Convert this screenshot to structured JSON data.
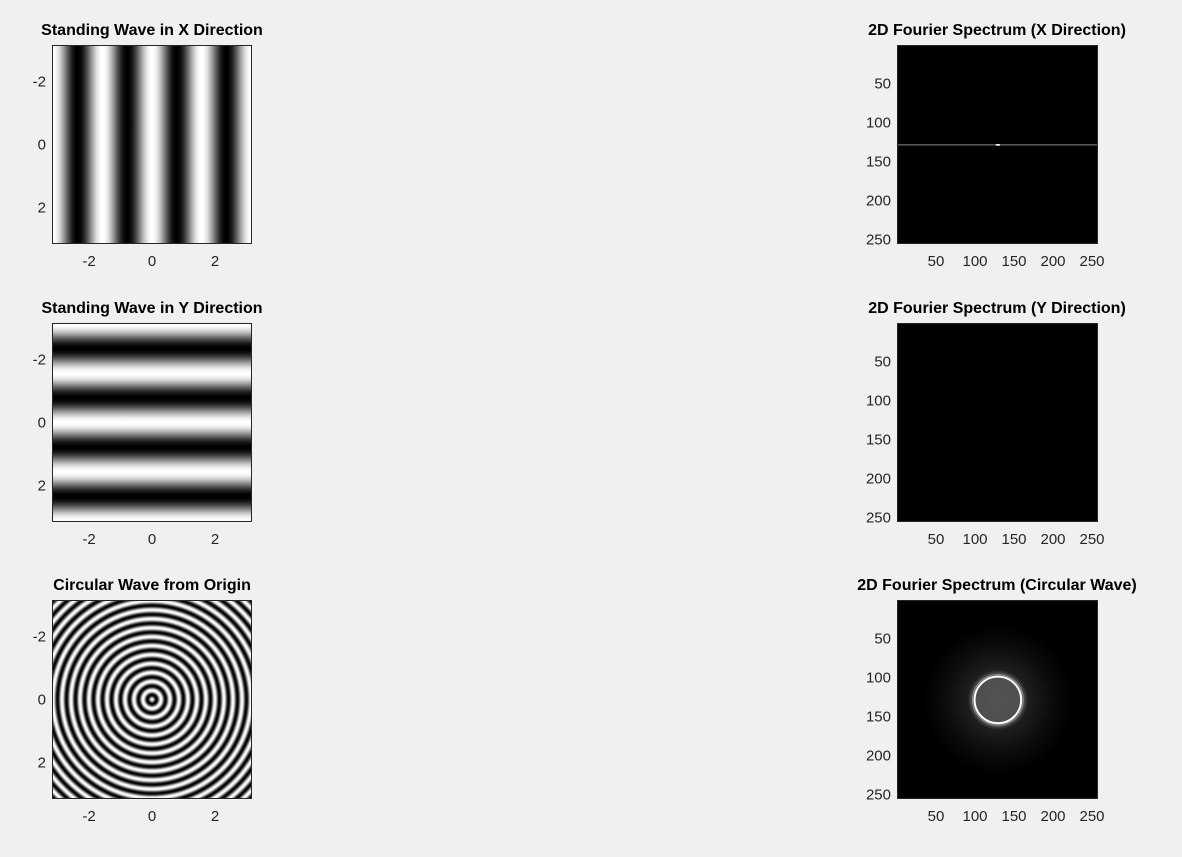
{
  "figure": {
    "background": "#f0f0f0"
  },
  "chart_data": [
    {
      "type": "heatmap",
      "title": "Standing Wave in X Direction",
      "pattern": "vertical-stripes",
      "colormap": "gray",
      "xlim": [
        -3.1416,
        3.1416
      ],
      "ylim": [
        -3.1416,
        3.1416
      ],
      "y_reversed": true,
      "wavenumber": 2,
      "xticks": [
        "-2",
        "0",
        "2"
      ],
      "yticks": [
        "-2",
        "0",
        "2"
      ]
    },
    {
      "type": "heatmap",
      "title": "2D Fourier Spectrum (X Direction)",
      "pattern": "horizontal-line-center",
      "colormap": "gray",
      "xlim": [
        0.5,
        256.5
      ],
      "ylim": [
        0.5,
        256.5
      ],
      "y_reversed": true,
      "xticks": [
        "50",
        "100",
        "150",
        "200",
        "250"
      ],
      "yticks": [
        "50",
        "100",
        "150",
        "200",
        "250"
      ]
    },
    {
      "type": "heatmap",
      "title": "Standing Wave in Y Direction",
      "pattern": "horizontal-stripes",
      "colormap": "gray",
      "xlim": [
        -3.1416,
        3.1416
      ],
      "ylim": [
        -3.1416,
        3.1416
      ],
      "y_reversed": true,
      "wavenumber": 2,
      "xticks": [
        "-2",
        "0",
        "2"
      ],
      "yticks": [
        "-2",
        "0",
        "2"
      ]
    },
    {
      "type": "heatmap",
      "title": "2D Fourier Spectrum (Y Direction)",
      "pattern": "black",
      "colormap": "gray",
      "xlim": [
        0.5,
        256.5
      ],
      "ylim": [
        0.5,
        256.5
      ],
      "y_reversed": true,
      "xticks": [
        "50",
        "100",
        "150",
        "200",
        "250"
      ],
      "yticks": [
        "50",
        "100",
        "150",
        "200",
        "250"
      ]
    },
    {
      "type": "heatmap",
      "title": "Circular Wave from Origin",
      "pattern": "concentric-rings",
      "colormap": "gray",
      "xlim": [
        -3.1416,
        3.1416
      ],
      "ylim": [
        -3.1416,
        3.1416
      ],
      "y_reversed": true,
      "ring_count": 22,
      "xticks": [
        "-2",
        "0",
        "2"
      ],
      "yticks": [
        "-2",
        "0",
        "2"
      ]
    },
    {
      "type": "heatmap",
      "title": "2D Fourier Spectrum (Circular Wave)",
      "pattern": "ring-with-cross",
      "colormap": "gray",
      "xlim": [
        0.5,
        256.5
      ],
      "ylim": [
        0.5,
        256.5
      ],
      "y_reversed": true,
      "ring_center": [
        129,
        129
      ],
      "ring_radius": 30,
      "xticks": [
        "50",
        "100",
        "150",
        "200",
        "250"
      ],
      "yticks": [
        "50",
        "100",
        "150",
        "200",
        "250"
      ]
    }
  ]
}
